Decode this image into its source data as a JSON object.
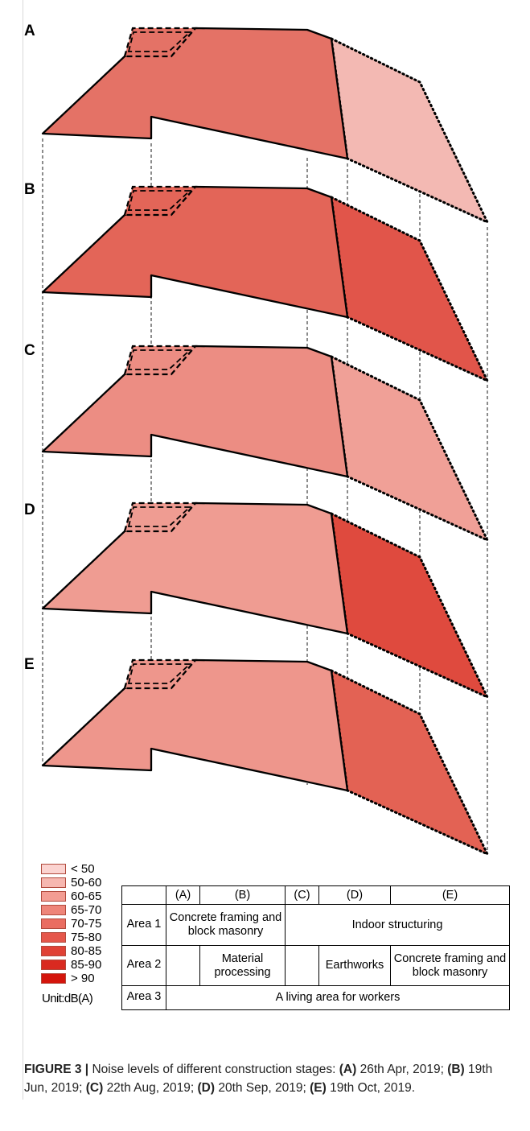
{
  "panels": [
    {
      "label": "A",
      "area1_fill": "#e47266",
      "area3_fill": "#f3b9b3"
    },
    {
      "label": "B",
      "area1_fill": "#e36558",
      "area3_fill": "#e1554a"
    },
    {
      "label": "C",
      "area1_fill": "#ec8d83",
      "area3_fill": "#f0a097"
    },
    {
      "label": "D",
      "area1_fill": "#ef9c92",
      "area3_fill": "#df4a3e"
    },
    {
      "label": "E",
      "area1_fill": "#ee968c",
      "area3_fill": "#e36254"
    }
  ],
  "legend": {
    "items": [
      {
        "label": "< 50",
        "color": "#fbd3d0"
      },
      {
        "label": "50-60",
        "color": "#f6b7b0"
      },
      {
        "label": "60-65",
        "color": "#f39d93"
      },
      {
        "label": "65-70",
        "color": "#ee8579"
      },
      {
        "label": "70-75",
        "color": "#ea6d61"
      },
      {
        "label": "75-80",
        "color": "#e5574b"
      },
      {
        "label": "80-85",
        "color": "#e04135"
      },
      {
        "label": "85-90",
        "color": "#d92a20"
      },
      {
        "label": "> 90",
        "color": "#d4150c"
      }
    ],
    "unit": "Unit:dB(A)"
  },
  "table": {
    "headers": [
      "(A)",
      "(B)",
      "(C)",
      "(D)",
      "(E)"
    ],
    "area1": {
      "label": "Area 1",
      "stage_ab": "Concrete framing and block masonry",
      "stage_ce": "Indoor structuring"
    },
    "area2": {
      "label": "Area 2",
      "stage_b": "Material processing",
      "stage_d": "Earthworks",
      "stage_e": "Concrete framing and block masonry"
    },
    "area3": {
      "label": "Area 3",
      "stage_all": "A living area for workers"
    }
  },
  "caption": {
    "figure": "FIGURE 3 |",
    "text": "Noise levels of different construction stages:",
    "items": [
      {
        "key": "(A)",
        "date": "26th Apr, 2019;"
      },
      {
        "key": "(B)",
        "date": "19th Jun, 2019;"
      },
      {
        "key": "(C)",
        "date": "22th Aug, 2019;"
      },
      {
        "key": "(D)",
        "date": "20th Sep, 2019;"
      },
      {
        "key": "(E)",
        "date": "19th Oct, 2019."
      }
    ]
  }
}
